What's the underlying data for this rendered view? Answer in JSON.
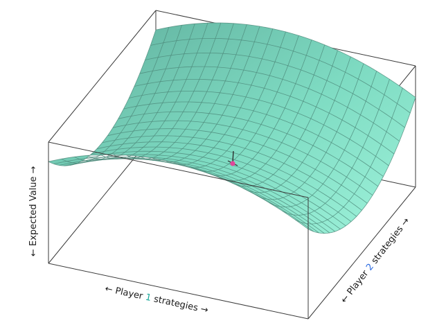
{
  "axes": {
    "x": {
      "prefix": "← Player ",
      "number": "1",
      "suffix": " strategies →",
      "number_color": "#1aa89a"
    },
    "y": {
      "prefix": "← Player ",
      "number": "2",
      "suffix": " strategies →",
      "number_color": "#2b6be0"
    },
    "z": {
      "label": "← Expected Value →"
    }
  },
  "surface": {
    "type": "saddle",
    "color": "#7fdcc3",
    "mesh_color": "#4f8c7d",
    "grid_divisions": 20
  },
  "equilibrium": {
    "marker_color": "#e0489a",
    "arrow_color": "#2a2a2a"
  }
}
